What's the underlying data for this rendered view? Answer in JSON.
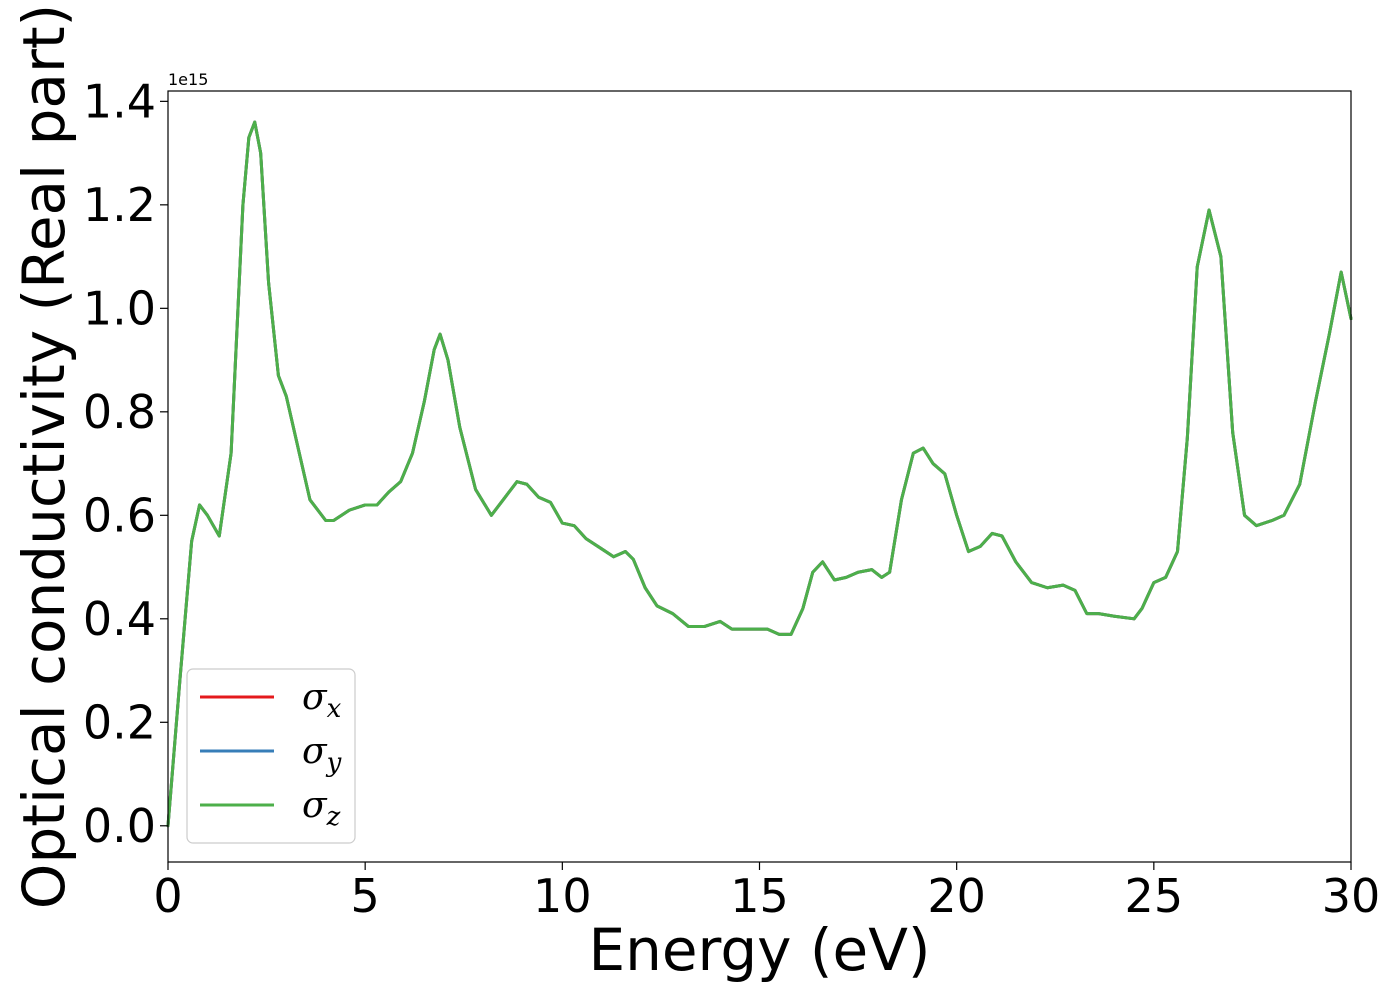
{
  "chart_data": {
    "type": "line",
    "title": "",
    "xlabel": "Energy (eV)",
    "ylabel": "Optical conductivity (Real part)",
    "y_offset_text": "1e15",
    "xlim": [
      0,
      30
    ],
    "ylim": [
      -0.07,
      1.42
    ],
    "x_ticks": [
      0,
      5,
      10,
      15,
      20,
      25,
      30
    ],
    "x_tick_labels": [
      "0",
      "5",
      "10",
      "15",
      "20",
      "25",
      "30"
    ],
    "y_ticks": [
      0.0,
      0.2,
      0.4,
      0.6,
      0.8,
      1.0,
      1.2,
      1.4
    ],
    "y_tick_labels": [
      "0.0",
      "0.2",
      "0.4",
      "0.6",
      "0.8",
      "1.0",
      "1.2",
      "1.4"
    ],
    "grid": false,
    "legend_placement": "lower-left",
    "x": [
      0,
      0.3,
      0.6,
      0.8,
      1.0,
      1.3,
      1.6,
      1.9,
      2.05,
      2.2,
      2.35,
      2.55,
      2.8,
      3.0,
      3.3,
      3.6,
      4.0,
      4.2,
      4.6,
      5.0,
      5.3,
      5.6,
      5.9,
      6.2,
      6.5,
      6.75,
      6.9,
      7.1,
      7.4,
      7.8,
      8.2,
      8.5,
      8.85,
      9.1,
      9.4,
      9.7,
      10.0,
      10.3,
      10.6,
      11.0,
      11.3,
      11.6,
      11.8,
      12.1,
      12.4,
      12.8,
      13.2,
      13.6,
      14.0,
      14.3,
      14.8,
      15.2,
      15.5,
      15.8,
      16.1,
      16.35,
      16.6,
      16.9,
      17.2,
      17.5,
      17.85,
      18.1,
      18.3,
      18.6,
      18.9,
      19.15,
      19.4,
      19.7,
      20.0,
      20.3,
      20.6,
      20.9,
      21.15,
      21.5,
      21.9,
      22.3,
      22.7,
      23.0,
      23.3,
      23.6,
      24.0,
      24.5,
      24.7,
      25.0,
      25.3,
      25.6,
      25.85,
      26.1,
      26.4,
      26.7,
      27.0,
      27.3,
      27.6,
      28.0,
      28.3,
      28.7,
      29.1,
      29.45,
      29.75,
      30.0
    ],
    "series": [
      {
        "name": "σx",
        "color": "#e41a1c",
        "values": [
          0.0,
          0.28,
          0.55,
          0.62,
          0.6,
          0.56,
          0.72,
          1.2,
          1.33,
          1.36,
          1.3,
          1.05,
          0.87,
          0.83,
          0.73,
          0.63,
          0.59,
          0.59,
          0.61,
          0.62,
          0.62,
          0.645,
          0.665,
          0.72,
          0.82,
          0.92,
          0.95,
          0.9,
          0.77,
          0.65,
          0.6,
          0.63,
          0.665,
          0.66,
          0.635,
          0.625,
          0.585,
          0.58,
          0.555,
          0.535,
          0.52,
          0.53,
          0.515,
          0.46,
          0.425,
          0.41,
          0.385,
          0.385,
          0.395,
          0.38,
          0.38,
          0.38,
          0.37,
          0.37,
          0.42,
          0.49,
          0.51,
          0.475,
          0.48,
          0.49,
          0.495,
          0.48,
          0.49,
          0.63,
          0.72,
          0.73,
          0.7,
          0.68,
          0.6,
          0.53,
          0.54,
          0.565,
          0.56,
          0.51,
          0.47,
          0.46,
          0.465,
          0.455,
          0.41,
          0.41,
          0.405,
          0.4,
          0.42,
          0.47,
          0.48,
          0.53,
          0.75,
          1.08,
          1.19,
          1.1,
          0.76,
          0.6,
          0.58,
          0.59,
          0.6,
          0.66,
          0.82,
          0.95,
          1.07,
          0.98
        ]
      },
      {
        "name": "σy",
        "color": "#377eb8",
        "values": [
          0.0,
          0.28,
          0.55,
          0.62,
          0.6,
          0.56,
          0.72,
          1.2,
          1.33,
          1.36,
          1.3,
          1.05,
          0.87,
          0.83,
          0.73,
          0.63,
          0.59,
          0.59,
          0.61,
          0.62,
          0.62,
          0.645,
          0.665,
          0.72,
          0.82,
          0.92,
          0.95,
          0.9,
          0.77,
          0.65,
          0.6,
          0.63,
          0.665,
          0.66,
          0.635,
          0.625,
          0.585,
          0.58,
          0.555,
          0.535,
          0.52,
          0.53,
          0.515,
          0.46,
          0.425,
          0.41,
          0.385,
          0.385,
          0.395,
          0.38,
          0.38,
          0.38,
          0.37,
          0.37,
          0.42,
          0.49,
          0.51,
          0.475,
          0.48,
          0.49,
          0.495,
          0.48,
          0.49,
          0.63,
          0.72,
          0.73,
          0.7,
          0.68,
          0.6,
          0.53,
          0.54,
          0.565,
          0.56,
          0.51,
          0.47,
          0.46,
          0.465,
          0.455,
          0.41,
          0.41,
          0.405,
          0.4,
          0.42,
          0.47,
          0.48,
          0.53,
          0.75,
          1.08,
          1.19,
          1.1,
          0.76,
          0.6,
          0.58,
          0.59,
          0.6,
          0.66,
          0.82,
          0.95,
          1.07,
          0.98
        ]
      },
      {
        "name": "σz",
        "color": "#4daf4a",
        "values": [
          0.0,
          0.28,
          0.55,
          0.62,
          0.6,
          0.56,
          0.72,
          1.2,
          1.33,
          1.36,
          1.3,
          1.05,
          0.87,
          0.83,
          0.73,
          0.63,
          0.59,
          0.59,
          0.61,
          0.62,
          0.62,
          0.645,
          0.665,
          0.72,
          0.82,
          0.92,
          0.95,
          0.9,
          0.77,
          0.65,
          0.6,
          0.63,
          0.665,
          0.66,
          0.635,
          0.625,
          0.585,
          0.58,
          0.555,
          0.535,
          0.52,
          0.53,
          0.515,
          0.46,
          0.425,
          0.41,
          0.385,
          0.385,
          0.395,
          0.38,
          0.38,
          0.38,
          0.37,
          0.37,
          0.42,
          0.49,
          0.51,
          0.475,
          0.48,
          0.49,
          0.495,
          0.48,
          0.49,
          0.63,
          0.72,
          0.73,
          0.7,
          0.68,
          0.6,
          0.53,
          0.54,
          0.565,
          0.56,
          0.51,
          0.47,
          0.46,
          0.465,
          0.455,
          0.41,
          0.41,
          0.405,
          0.4,
          0.42,
          0.47,
          0.48,
          0.53,
          0.75,
          1.08,
          1.19,
          1.1,
          0.76,
          0.6,
          0.58,
          0.59,
          0.6,
          0.66,
          0.82,
          0.95,
          1.07,
          0.98
        ]
      }
    ],
    "legend": [
      {
        "symbol": "σ",
        "subscript": "x",
        "color": "#e41a1c"
      },
      {
        "symbol": "σ",
        "subscript": "y",
        "color": "#377eb8"
      },
      {
        "symbol": "σ",
        "subscript": "z",
        "color": "#4daf4a"
      }
    ]
  }
}
